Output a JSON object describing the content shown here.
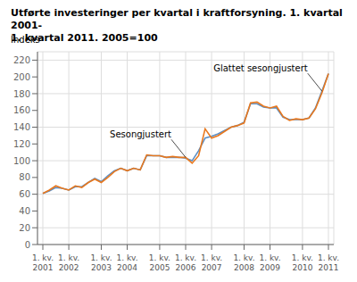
{
  "chart_data": {
    "type": "line",
    "title": "Utførte investeringer per kvartal i kraftforsyning. 1. kvartal 2001-\n1. kvartal 2011. 2005=100",
    "y_label": "Indeks",
    "categories": [
      "1. kv.\n2001",
      null,
      null,
      null,
      "1. kv.\n2002",
      null,
      null,
      null,
      null,
      "1. kv.\n2003",
      null,
      null,
      null,
      "1. kv.\n2004",
      null,
      null,
      null,
      null,
      "1. kv.\n2005",
      null,
      null,
      null,
      "1. kv.\n2006",
      null,
      null,
      null,
      "1. kv.\n2007",
      null,
      null,
      null,
      null,
      "1. kv.\n2008",
      null,
      null,
      null,
      "1. kv.\n2009",
      null,
      null,
      null,
      null,
      "1. kv.\n2010",
      null,
      null,
      null,
      "1. kv.\n2011"
    ],
    "series": [
      {
        "name": "Glattet sesongjustert",
        "color": "#5b8ec4",
        "values": [
          61,
          64,
          68,
          67,
          65,
          69,
          69,
          74,
          79,
          75,
          82,
          88,
          91,
          88,
          91,
          89,
          106,
          106,
          106,
          104,
          104,
          104,
          103,
          100,
          112,
          127,
          129,
          132,
          136,
          140,
          142,
          146,
          168,
          168,
          164,
          163,
          163,
          152,
          149,
          149,
          149,
          151,
          163,
          183,
          204
        ]
      },
      {
        "name": "Sesongjustert",
        "color": "#e8781e",
        "values": [
          61,
          65,
          70,
          67,
          65,
          70,
          68,
          74,
          78,
          74,
          80,
          87,
          91,
          88,
          91,
          89,
          107,
          106,
          106,
          104,
          105,
          104,
          104,
          97,
          106,
          138,
          127,
          130,
          135,
          140,
          142,
          145,
          169,
          170,
          165,
          163,
          165,
          153,
          148,
          150,
          149,
          151,
          162,
          181,
          204
        ]
      }
    ],
    "ylim": [
      0,
      230
    ],
    "yticks": [
      0,
      20,
      40,
      60,
      80,
      100,
      120,
      140,
      160,
      180,
      200,
      220
    ],
    "grid": true
  }
}
